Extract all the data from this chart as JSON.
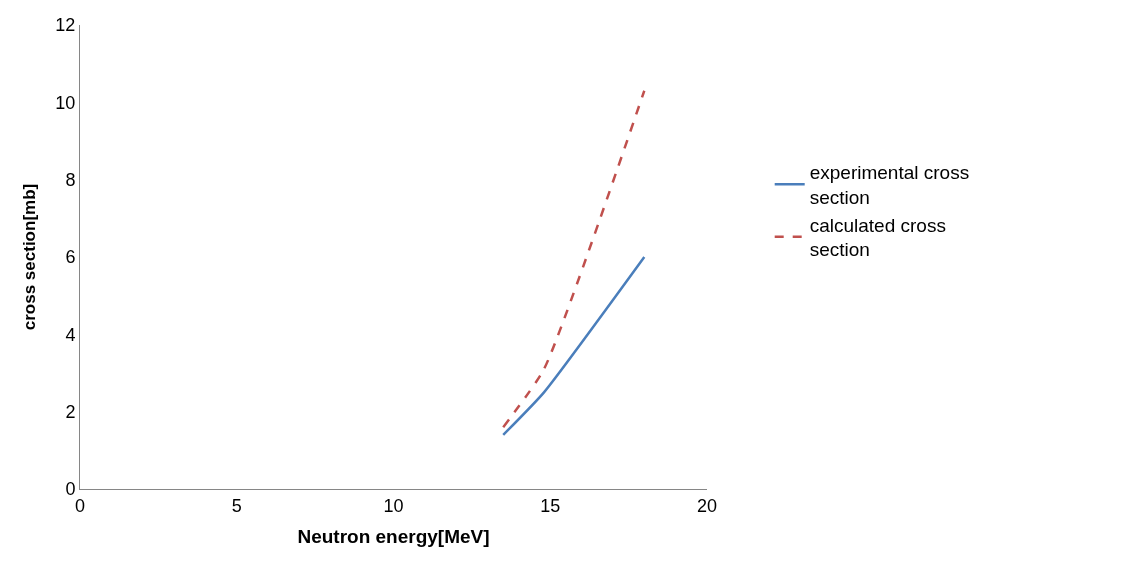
{
  "chart_data": {
    "type": "line",
    "xlabel": "Neutron energy[MeV]",
    "ylabel": "cross section[mb]",
    "x": [
      13.5,
      14.8,
      18
    ],
    "series": [
      {
        "name": "experimental cross section",
        "color": "#4a7ebb",
        "values": [
          1.4,
          2.5,
          6.0
        ],
        "line_style": "solid"
      },
      {
        "name": "calculated cross section",
        "color": "#c0504d",
        "values": [
          1.6,
          3.1,
          10.3
        ],
        "line_style": "dashed"
      }
    ],
    "xlim": [
      0,
      20
    ],
    "xticks": [
      0,
      5,
      10,
      15,
      20
    ],
    "ylim": [
      0,
      12
    ],
    "yticks": [
      0,
      2,
      4,
      6,
      8,
      10,
      12
    ],
    "grid": false,
    "legend": "right",
    "marker": "none"
  }
}
